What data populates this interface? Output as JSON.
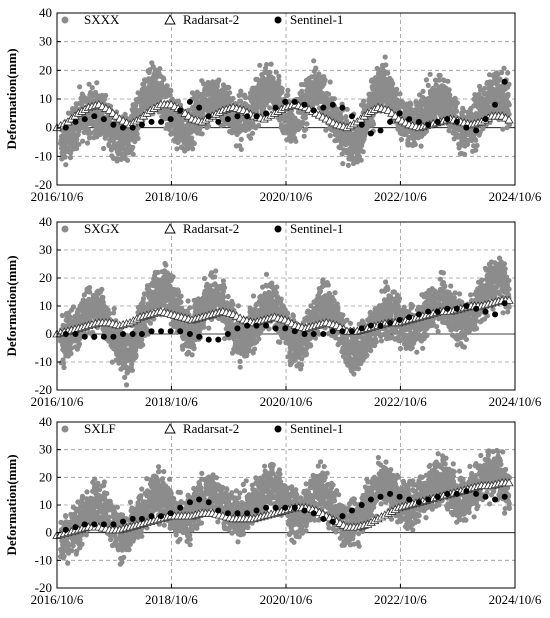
{
  "chart_data": [
    {
      "type": "scatter",
      "ylabel": "Deformation(mm)",
      "ylim": [
        -20,
        40
      ],
      "yticks": [
        -20,
        -10,
        0,
        10,
        20,
        30,
        40
      ],
      "xlim": [
        "2016/10/6",
        "2024/10/6"
      ],
      "xticks": [
        "2016/10/6",
        "2018/10/6",
        "2020/10/6",
        "2022/10/6",
        "2024/10/6"
      ],
      "grid": true,
      "legend": "top",
      "series": [
        {
          "name": "SXXX",
          "marker": "gray-dot",
          "color": "#8c8c8c",
          "x": [
            "2016/11/1",
            "2017/1/1",
            "2017/3/1",
            "2017/5/1",
            "2017/7/1",
            "2017/9/1",
            "2017/11/1",
            "2018/1/1",
            "2018/3/1",
            "2018/5/1",
            "2018/7/1",
            "2018/9/1",
            "2018/11/1",
            "2019/1/1",
            "2019/3/1",
            "2019/5/1",
            "2019/7/1",
            "2019/9/1",
            "2019/11/1",
            "2020/1/1",
            "2020/3/1",
            "2020/5/1",
            "2020/7/1",
            "2020/9/1",
            "2020/11/1",
            "2021/1/1",
            "2021/3/1",
            "2021/5/1",
            "2021/7/1",
            "2021/9/1",
            "2021/11/1",
            "2022/1/1",
            "2022/3/1",
            "2022/5/1",
            "2022/7/1",
            "2022/9/1",
            "2022/11/1",
            "2023/1/1",
            "2023/3/1",
            "2023/5/1",
            "2023/7/1",
            "2023/9/1",
            "2023/11/1",
            "2024/1/1",
            "2024/3/1",
            "2024/5/1",
            "2024/7/1",
            "2024/9/1"
          ],
          "values": [
            -6,
            -2,
            3,
            6,
            5,
            0,
            -4,
            -3,
            3,
            10,
            14,
            8,
            2,
            -1,
            3,
            7,
            10,
            9,
            4,
            3,
            6,
            12,
            14,
            8,
            2,
            5,
            11,
            13,
            7,
            0,
            -3,
            -6,
            2,
            12,
            15,
            8,
            3,
            0,
            4,
            9,
            11,
            5,
            -2,
            0,
            6,
            10,
            12,
            8
          ]
        },
        {
          "name": "Radarsat-2",
          "marker": "open-triangle",
          "color": "#000000",
          "x": [
            "2016/10/6",
            "2016/12/15",
            "2017/2/20",
            "2017/4/25",
            "2017/6/30",
            "2017/9/5",
            "2017/11/10",
            "2018/1/15",
            "2018/3/20",
            "2018/5/25",
            "2018/7/30",
            "2018/10/4",
            "2018/12/10",
            "2019/2/14",
            "2019/4/20",
            "2019/6/25",
            "2019/8/30",
            "2019/11/4",
            "2020/1/9",
            "2020/3/15",
            "2020/5/20",
            "2020/7/25",
            "2020/9/29",
            "2020/12/4",
            "2021/2/8",
            "2021/4/15",
            "2021/6/20",
            "2021/8/25",
            "2021/10/30",
            "2022/1/4",
            "2022/3/11",
            "2022/5/16",
            "2022/7/21",
            "2022/9/25",
            "2022/11/30",
            "2023/2/4",
            "2023/4/11",
            "2023/6/16",
            "2023/8/21",
            "2023/10/26",
            "2023/12/31",
            "2024/3/6",
            "2024/5/11",
            "2024/7/16",
            "2024/9/20"
          ],
          "values": [
            0,
            2,
            5,
            7,
            8,
            6,
            3,
            1,
            3,
            6,
            8,
            8,
            6,
            3,
            2,
            4,
            6,
            7,
            6,
            4,
            3,
            5,
            7,
            8,
            7,
            5,
            3,
            1,
            0,
            2,
            5,
            7,
            6,
            3,
            1,
            0,
            1,
            2,
            3,
            2,
            1,
            2,
            4,
            4,
            2
          ]
        },
        {
          "name": "Sentinel-1",
          "marker": "filled-dot",
          "color": "#000000",
          "x": [
            "2016/12/1",
            "2017/2/1",
            "2017/4/1",
            "2017/6/1",
            "2017/8/1",
            "2017/10/1",
            "2017/12/1",
            "2018/2/1",
            "2018/4/1",
            "2018/6/1",
            "2018/8/1",
            "2018/10/1",
            "2018/12/1",
            "2019/2/1",
            "2019/4/1",
            "2019/6/1",
            "2019/8/1",
            "2019/10/1",
            "2019/12/1",
            "2020/2/1",
            "2020/4/1",
            "2020/6/1",
            "2020/8/1",
            "2020/10/1",
            "2020/12/1",
            "2021/2/1",
            "2021/4/1",
            "2021/6/1",
            "2021/8/1",
            "2021/10/1",
            "2021/12/1",
            "2022/2/1",
            "2022/4/1",
            "2022/6/1",
            "2022/8/1",
            "2022/10/1",
            "2022/12/1",
            "2023/2/1",
            "2023/4/1",
            "2023/6/1",
            "2023/8/1",
            "2023/10/1",
            "2023/12/1",
            "2024/2/1",
            "2024/4/1",
            "2024/6/1",
            "2024/8/1"
          ],
          "values": [
            0,
            2,
            3,
            4,
            3,
            1,
            0,
            0,
            1,
            2,
            2,
            3,
            6,
            9,
            7,
            4,
            2,
            3,
            4,
            4,
            4,
            5,
            7,
            9,
            9,
            8,
            6,
            7,
            8,
            7,
            4,
            1,
            -2,
            -1,
            2,
            5,
            3,
            2,
            1,
            2,
            3,
            2,
            0,
            -1,
            3,
            8,
            16
          ]
        }
      ]
    },
    {
      "type": "scatter",
      "ylabel": "Deformation(mm)",
      "ylim": [
        -20,
        40
      ],
      "yticks": [
        -20,
        -10,
        0,
        10,
        20,
        30,
        40
      ],
      "xlim": [
        "2016/10/6",
        "2024/10/6"
      ],
      "xticks": [
        "2016/10/6",
        "2018/10/6",
        "2020/10/6",
        "2022/10/6",
        "2024/10/6"
      ],
      "grid": true,
      "legend": "top",
      "series": [
        {
          "name": "SXGX",
          "marker": "gray-dot",
          "color": "#8c8c8c",
          "x": [
            "2016/11/1",
            "2017/1/1",
            "2017/3/1",
            "2017/5/1",
            "2017/7/1",
            "2017/9/1",
            "2017/11/1",
            "2018/1/1",
            "2018/3/1",
            "2018/5/1",
            "2018/7/1",
            "2018/9/1",
            "2018/11/1",
            "2019/1/1",
            "2019/3/1",
            "2019/5/1",
            "2019/7/1",
            "2019/9/1",
            "2019/11/1",
            "2020/1/1",
            "2020/3/1",
            "2020/5/1",
            "2020/7/1",
            "2020/9/1",
            "2020/11/1",
            "2021/1/1",
            "2021/3/1",
            "2021/5/1",
            "2021/7/1",
            "2021/9/1",
            "2021/11/1",
            "2022/1/1",
            "2022/3/1",
            "2022/5/1",
            "2022/7/1",
            "2022/9/1",
            "2022/11/1",
            "2023/1/1",
            "2023/3/1",
            "2023/5/1",
            "2023/7/1",
            "2023/9/1",
            "2023/11/1",
            "2024/1/1",
            "2024/3/1",
            "2024/5/1",
            "2024/7/1",
            "2024/9/1"
          ],
          "values": [
            -3,
            0,
            4,
            8,
            10,
            3,
            -5,
            -8,
            0,
            8,
            15,
            18,
            10,
            2,
            3,
            9,
            14,
            10,
            2,
            -3,
            2,
            8,
            12,
            6,
            -2,
            -4,
            2,
            9,
            10,
            4,
            -4,
            -6,
            -2,
            4,
            8,
            6,
            2,
            1,
            6,
            10,
            12,
            8,
            4,
            6,
            12,
            18,
            20,
            14
          ]
        },
        {
          "name": "Radarsat-2",
          "marker": "open-triangle",
          "color": "#000000",
          "x": [
            "2016/10/6",
            "2016/12/15",
            "2017/2/20",
            "2017/4/25",
            "2017/6/30",
            "2017/9/5",
            "2017/11/10",
            "2018/1/15",
            "2018/3/20",
            "2018/5/25",
            "2018/7/30",
            "2018/10/4",
            "2018/12/10",
            "2019/2/14",
            "2019/4/20",
            "2019/6/25",
            "2019/8/30",
            "2019/11/4",
            "2020/1/9",
            "2020/3/15",
            "2020/5/20",
            "2020/7/25",
            "2020/9/29",
            "2020/12/4",
            "2021/2/8",
            "2021/4/15",
            "2021/6/20",
            "2021/8/25",
            "2021/10/30",
            "2022/1/4",
            "2022/3/11",
            "2022/5/16",
            "2022/7/21",
            "2022/9/25",
            "2022/11/30",
            "2023/2/4",
            "2023/4/11",
            "2023/6/16",
            "2023/8/21",
            "2023/10/26",
            "2023/12/31",
            "2024/3/6",
            "2024/5/11",
            "2024/7/16",
            "2024/9/20"
          ],
          "values": [
            0,
            1,
            2,
            3,
            4,
            4,
            3,
            4,
            6,
            7,
            8,
            7,
            6,
            5,
            6,
            7,
            8,
            7,
            5,
            4,
            5,
            6,
            5,
            3,
            2,
            3,
            4,
            3,
            1,
            1,
            2,
            3,
            4,
            4,
            5,
            6,
            7,
            8,
            8,
            9,
            10,
            10,
            11,
            12,
            12
          ]
        },
        {
          "name": "Sentinel-1",
          "marker": "filled-dot",
          "color": "#000000",
          "x": [
            "2016/12/1",
            "2017/2/1",
            "2017/4/1",
            "2017/6/1",
            "2017/8/1",
            "2017/10/1",
            "2017/12/1",
            "2018/2/1",
            "2018/4/1",
            "2018/6/1",
            "2018/8/1",
            "2018/10/1",
            "2018/12/1",
            "2019/2/1",
            "2019/4/1",
            "2019/6/1",
            "2019/8/1",
            "2019/10/1",
            "2019/12/1",
            "2020/2/1",
            "2020/4/1",
            "2020/6/1",
            "2020/8/1",
            "2020/10/1",
            "2020/12/1",
            "2021/2/1",
            "2021/4/1",
            "2021/6/1",
            "2021/8/1",
            "2021/10/1",
            "2021/12/1",
            "2022/2/1",
            "2022/4/1",
            "2022/6/1",
            "2022/8/1",
            "2022/10/1",
            "2022/12/1",
            "2023/2/1",
            "2023/4/1",
            "2023/6/1",
            "2023/8/1",
            "2023/10/1",
            "2023/12/1",
            "2024/2/1",
            "2024/4/1",
            "2024/6/1",
            "2024/8/1"
          ],
          "values": [
            0,
            0,
            -1,
            -1,
            -1,
            -1,
            0,
            0,
            0,
            1,
            1,
            1,
            1,
            0,
            -1,
            -2,
            -2,
            0,
            2,
            3,
            3,
            3,
            2,
            2,
            1,
            0,
            0,
            0,
            1,
            1,
            1,
            2,
            3,
            3,
            4,
            5,
            6,
            7,
            8,
            8,
            9,
            9,
            10,
            9,
            8,
            7,
            11
          ]
        }
      ]
    },
    {
      "type": "scatter",
      "ylabel": "Deformation(mm)",
      "ylim": [
        -20,
        40
      ],
      "yticks": [
        -20,
        -10,
        0,
        10,
        20,
        30,
        40
      ],
      "xlim": [
        "2016/10/6",
        "2024/10/6"
      ],
      "xticks": [
        "2016/10/6",
        "2018/10/6",
        "2020/10/6",
        "2022/10/6",
        "2024/10/6"
      ],
      "grid": true,
      "legend": "top",
      "series": [
        {
          "name": "SXLF",
          "marker": "gray-dot",
          "color": "#8c8c8c",
          "x": [
            "2016/11/1",
            "2017/1/1",
            "2017/3/1",
            "2017/5/1",
            "2017/7/1",
            "2017/9/1",
            "2017/11/1",
            "2018/1/1",
            "2018/3/1",
            "2018/5/1",
            "2018/7/1",
            "2018/9/1",
            "2018/11/1",
            "2019/1/1",
            "2019/3/1",
            "2019/5/1",
            "2019/7/1",
            "2019/9/1",
            "2019/11/1",
            "2020/1/1",
            "2020/3/1",
            "2020/5/1",
            "2020/7/1",
            "2020/9/1",
            "2020/11/1",
            "2021/1/1",
            "2021/3/1",
            "2021/5/1",
            "2021/7/1",
            "2021/9/1",
            "2021/11/1",
            "2022/1/1",
            "2022/3/1",
            "2022/5/1",
            "2022/7/1",
            "2022/9/1",
            "2022/11/1",
            "2023/1/1",
            "2023/3/1",
            "2023/5/1",
            "2023/7/1",
            "2023/9/1",
            "2023/11/1",
            "2024/1/1",
            "2024/3/1",
            "2024/5/1",
            "2024/7/1",
            "2024/9/1"
          ],
          "values": [
            -3,
            0,
            3,
            8,
            12,
            6,
            0,
            -2,
            4,
            10,
            15,
            12,
            6,
            4,
            8,
            13,
            15,
            10,
            6,
            6,
            10,
            14,
            18,
            14,
            8,
            6,
            10,
            16,
            12,
            6,
            2,
            4,
            10,
            16,
            18,
            14,
            10,
            10,
            14,
            18,
            20,
            16,
            12,
            14,
            18,
            22,
            20,
            14
          ]
        },
        {
          "name": "Radarsat-2",
          "marker": "open-triangle",
          "color": "#000000",
          "x": [
            "2016/10/6",
            "2016/12/15",
            "2017/2/20",
            "2017/4/25",
            "2017/6/30",
            "2017/9/5",
            "2017/11/10",
            "2018/1/15",
            "2018/3/20",
            "2018/5/25",
            "2018/7/30",
            "2018/10/4",
            "2018/12/10",
            "2019/2/14",
            "2019/4/20",
            "2019/6/25",
            "2019/8/30",
            "2019/11/4",
            "2020/1/9",
            "2020/3/15",
            "2020/5/20",
            "2020/7/25",
            "2020/9/29",
            "2020/12/4",
            "2021/2/8",
            "2021/4/15",
            "2021/6/20",
            "2021/8/25",
            "2021/10/30",
            "2022/1/4",
            "2022/3/11",
            "2022/5/16",
            "2022/7/21",
            "2022/9/25",
            "2022/11/30",
            "2023/2/4",
            "2023/4/11",
            "2023/6/16",
            "2023/8/21",
            "2023/10/26",
            "2023/12/31",
            "2024/3/6",
            "2024/5/11",
            "2024/7/16",
            "2024/9/20"
          ],
          "values": [
            -1,
            0,
            1,
            2,
            2,
            1,
            1,
            2,
            3,
            4,
            5,
            6,
            6,
            6,
            7,
            7,
            6,
            5,
            5,
            5,
            6,
            7,
            8,
            9,
            9,
            8,
            6,
            4,
            2,
            2,
            3,
            5,
            7,
            9,
            10,
            11,
            12,
            13,
            14,
            15,
            16,
            17,
            17,
            18,
            18
          ]
        },
        {
          "name": "Sentinel-1",
          "marker": "filled-dot",
          "color": "#000000",
          "x": [
            "2016/12/1",
            "2017/2/1",
            "2017/4/1",
            "2017/6/1",
            "2017/8/1",
            "2017/10/1",
            "2017/12/1",
            "2018/2/1",
            "2018/4/1",
            "2018/6/1",
            "2018/8/1",
            "2018/10/1",
            "2018/12/1",
            "2019/2/1",
            "2019/4/1",
            "2019/6/1",
            "2019/8/1",
            "2019/10/1",
            "2019/12/1",
            "2020/2/1",
            "2020/4/1",
            "2020/6/1",
            "2020/8/1",
            "2020/10/1",
            "2020/12/1",
            "2021/2/1",
            "2021/4/1",
            "2021/6/1",
            "2021/8/1",
            "2021/10/1",
            "2021/12/1",
            "2022/2/1",
            "2022/4/1",
            "2022/6/1",
            "2022/8/1",
            "2022/10/1",
            "2022/12/1",
            "2023/2/1",
            "2023/4/1",
            "2023/6/1",
            "2023/8/1",
            "2023/10/1",
            "2023/12/1",
            "2024/2/1",
            "2024/4/1",
            "2024/6/1",
            "2024/8/1"
          ],
          "values": [
            1,
            2,
            3,
            3,
            3,
            3,
            4,
            5,
            5,
            6,
            6,
            7,
            9,
            11,
            12,
            11,
            8,
            7,
            7,
            7,
            8,
            9,
            9,
            9,
            9,
            8,
            7,
            5,
            4,
            6,
            8,
            10,
            12,
            13,
            14,
            13,
            12,
            11,
            12,
            13,
            14,
            14,
            15,
            14,
            13,
            12,
            13
          ]
        }
      ]
    }
  ]
}
